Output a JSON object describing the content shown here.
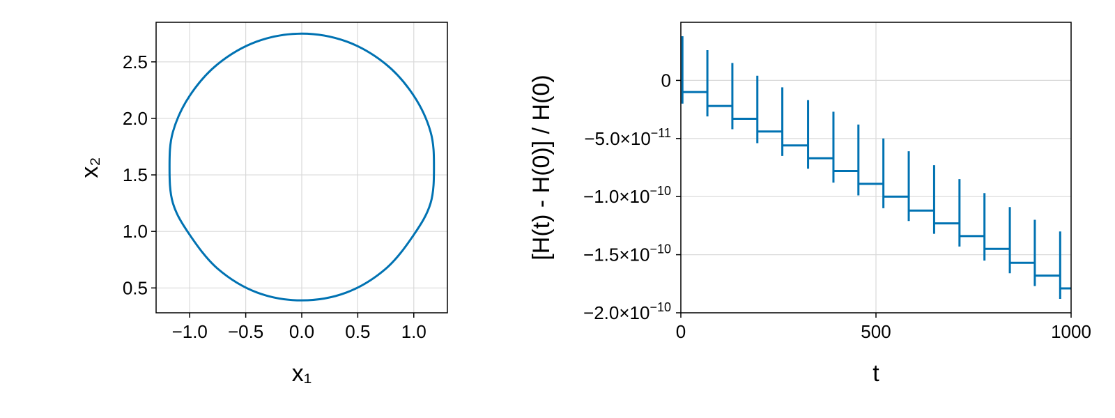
{
  "chart_data": [
    {
      "type": "line",
      "title": "",
      "xlabel": "x₁",
      "ylabel": "x₂",
      "xlim": [
        -1.3,
        1.3
      ],
      "ylim": [
        0.28,
        2.85
      ],
      "xticks": [
        -1.0,
        -0.5,
        0.0,
        0.5,
        1.0
      ],
      "xtick_labels": [
        "−1.0",
        "−0.5",
        "0.0",
        "0.5",
        "1.0"
      ],
      "yticks": [
        0.5,
        1.0,
        1.5,
        2.0,
        2.5
      ],
      "ytick_labels": [
        "0.5",
        "1.0",
        "1.5",
        "2.0",
        "2.5"
      ],
      "grid": true,
      "series": [
        {
          "color": "#0072b2",
          "closed": true,
          "x": [
            0.0,
            0.4,
            0.75,
            1.0,
            1.15,
            1.18,
            1.15,
            1.0,
            0.75,
            0.4,
            0.0,
            -0.4,
            -0.75,
            -1.0,
            -1.15,
            -1.18,
            -1.15,
            -1.0,
            -0.75,
            -0.4,
            0.0
          ],
          "y": [
            2.75,
            2.68,
            2.48,
            2.2,
            1.88,
            1.57,
            1.25,
            0.97,
            0.67,
            0.46,
            0.39,
            0.46,
            0.67,
            0.97,
            1.25,
            1.57,
            1.88,
            2.2,
            2.48,
            2.68,
            2.75
          ]
        }
      ]
    },
    {
      "type": "line",
      "title": "",
      "xlabel": "t",
      "ylabel": "[H(t) - H(0)] / H(0)",
      "xlim": [
        0,
        1000
      ],
      "ylim": [
        -2e-10,
        5e-11
      ],
      "xticks": [
        0,
        500,
        1000
      ],
      "xtick_labels": [
        "0",
        "500",
        "1000"
      ],
      "yticks": [
        0,
        -5e-11,
        -1e-10,
        -1.5e-10,
        -2e-10
      ],
      "ytick_labels": [
        {
          "mantissa": "0",
          "exponent": ""
        },
        {
          "mantissa": "−5.0×10",
          "exponent": "−11"
        },
        {
          "mantissa": "−1.0×10",
          "exponent": "−10"
        },
        {
          "mantissa": "−1.5×10",
          "exponent": "−10"
        },
        {
          "mantissa": "−2.0×10",
          "exponent": "−10"
        }
      ],
      "grid": true,
      "series": [
        {
          "color": "#0072b2",
          "step_levels": [
            -1e-11,
            -2.2e-11,
            -3.3e-11,
            -4.4e-11,
            -5.6e-11,
            -6.7e-11,
            -7.8e-11,
            -8.9e-11,
            -1e-10,
            -1.12e-10,
            -1.23e-10,
            -1.34e-10,
            -1.45e-10,
            -1.57e-10,
            -1.68e-10,
            -1.79e-10
          ],
          "spike_times": [
            4,
            68,
            132,
            196,
            260,
            326,
            391,
            455,
            519,
            584,
            649,
            714,
            778,
            843,
            907,
            972
          ],
          "spike_top": [
            3.8e-11,
            2.6e-11,
            1.5e-11,
            4e-12,
            -6e-12,
            -1.7e-11,
            -2.7e-11,
            -3.8e-11,
            -5e-11,
            -6.1e-11,
            -7.3e-11,
            -8.5e-11,
            -9.7e-11,
            -1.09e-10,
            -1.2e-10,
            -1.3e-10
          ],
          "spike_bottom": [
            -2e-11,
            -3.1e-11,
            -4.2e-11,
            -5.4e-11,
            -6.5e-11,
            -7.6e-11,
            -8.8e-11,
            -9.9e-11,
            -1.1e-10,
            -1.21e-10,
            -1.32e-10,
            -1.43e-10,
            -1.55e-10,
            -1.66e-10,
            -1.77e-10,
            -1.88e-10
          ]
        }
      ]
    }
  ]
}
